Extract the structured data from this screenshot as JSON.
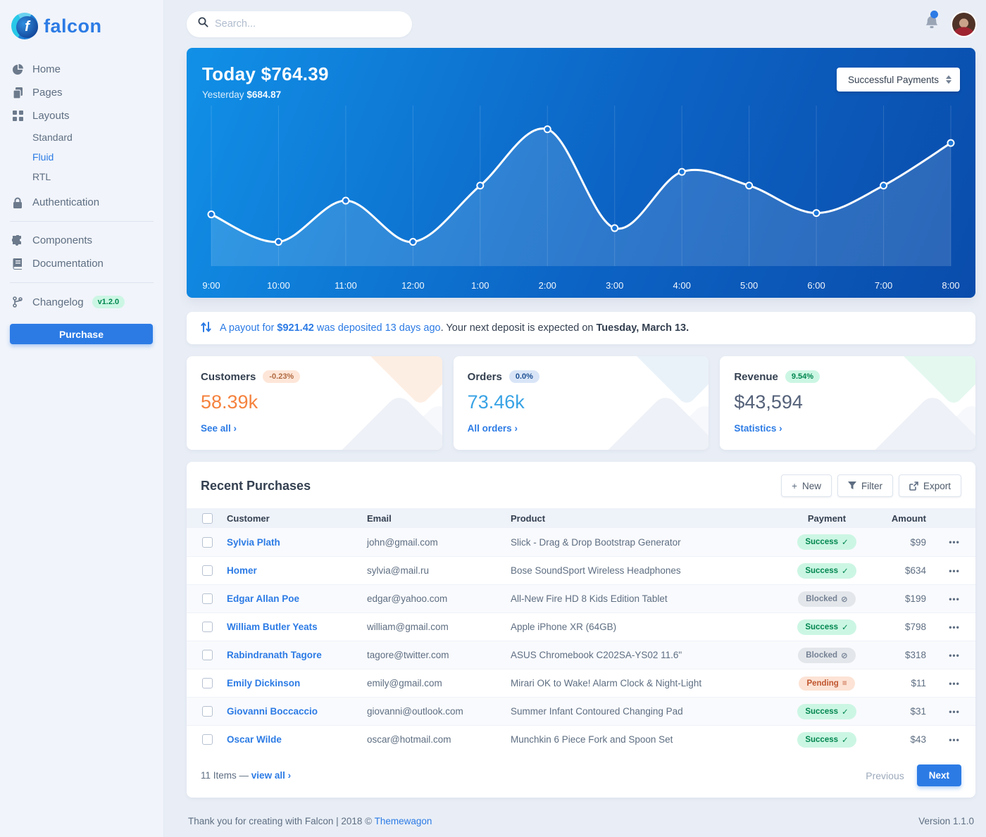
{
  "brand": {
    "name": "falcon"
  },
  "topbar": {
    "search_placeholder": "Search..."
  },
  "sidebar": {
    "home": "Home",
    "pages": "Pages",
    "layouts": "Layouts",
    "standard": "Standard",
    "fluid": "Fluid",
    "rtl": "RTL",
    "authentication": "Authentication",
    "components": "Components",
    "documentation": "Documentation",
    "changelog": "Changelog",
    "version_badge": "v1.2.0",
    "purchase": "Purchase"
  },
  "chart": {
    "title": "Today $764.39",
    "subtitle_label": "Yesterday",
    "subtitle_value": "$684.87",
    "select_value": "Successful Payments"
  },
  "chart_data": {
    "type": "line",
    "title": "Today $764.39",
    "series_name": "Successful Payments",
    "x": [
      "9:00",
      "10:00",
      "11:00",
      "12:00",
      "1:00",
      "2:00",
      "3:00",
      "4:00",
      "5:00",
      "6:00",
      "7:00",
      "8:00"
    ],
    "values": [
      31,
      11,
      41,
      11,
      52,
      93,
      21,
      62,
      52,
      32,
      52,
      83
    ],
    "ylim": [
      0,
      100
    ],
    "grid": "vertical-only",
    "legend": "none",
    "line_color": "#ffffff",
    "area_fill": "rgba(255,255,255,0.14)"
  },
  "payout": {
    "link_before_amount": "A payout for",
    "amount": "$921.42",
    "link_after_amount": "was deposited 13 days ago",
    "rest_text": ". Your next deposit is expected on",
    "rest_bold": "Tuesday, March 13."
  },
  "stats": [
    {
      "title": "Customers",
      "badge": "-0.23%",
      "value": "58.39k",
      "link": "See all",
      "accent": "warning"
    },
    {
      "title": "Orders",
      "badge": "0.0%",
      "value": "73.46k",
      "link": "All orders",
      "accent": "info"
    },
    {
      "title": "Revenue",
      "badge": "9.54%",
      "value": "$43,594",
      "link": "Statistics",
      "accent": "success"
    }
  ],
  "purchases": {
    "title": "Recent Purchases",
    "buttons": {
      "new": "New",
      "filter": "Filter",
      "export": "Export"
    },
    "columns": [
      "Customer",
      "Email",
      "Product",
      "Payment",
      "Amount"
    ],
    "status_icons": {
      "Success": "✓",
      "Blocked": "⊘",
      "Pending": "≡"
    },
    "rows": [
      {
        "customer": "Sylvia Plath",
        "email": "john@gmail.com",
        "product": "Slick - Drag & Drop Bootstrap Generator",
        "payment": "Success",
        "amount": "$99"
      },
      {
        "customer": "Homer",
        "email": "sylvia@mail.ru",
        "product": "Bose SoundSport Wireless Headphones",
        "payment": "Success",
        "amount": "$634"
      },
      {
        "customer": "Edgar Allan Poe",
        "email": "edgar@yahoo.com",
        "product": "All-New Fire HD 8 Kids Edition Tablet",
        "payment": "Blocked",
        "amount": "$199"
      },
      {
        "customer": "William Butler Yeats",
        "email": "william@gmail.com",
        "product": "Apple iPhone XR (64GB)",
        "payment": "Success",
        "amount": "$798"
      },
      {
        "customer": "Rabindranath Tagore",
        "email": "tagore@twitter.com",
        "product": "ASUS Chromebook C202SA-YS02 11.6\"",
        "payment": "Blocked",
        "amount": "$318"
      },
      {
        "customer": "Emily Dickinson",
        "email": "emily@gmail.com",
        "product": "Mirari OK to Wake! Alarm Clock & Night-Light",
        "payment": "Pending",
        "amount": "$11"
      },
      {
        "customer": "Giovanni Boccaccio",
        "email": "giovanni@outlook.com",
        "product": "Summer Infant Contoured Changing Pad",
        "payment": "Success",
        "amount": "$31"
      },
      {
        "customer": "Oscar Wilde",
        "email": "oscar@hotmail.com",
        "product": "Munchkin 6 Piece Fork and Spoon Set",
        "payment": "Success",
        "amount": "$43"
      }
    ],
    "footer": {
      "items_text": "11 Items —",
      "view_all": "view all",
      "previous": "Previous",
      "next": "Next"
    }
  },
  "page_footer": {
    "left_text": "Thank you for creating with Falcon | 2018 ©",
    "left_link": "Themewagon",
    "right_text": "Version 1.1.0"
  },
  "colors": {
    "primary": "#2c7be5",
    "success_text": "#00864e",
    "success_bg": "#ccf6e4",
    "warning_text": "#c0552e",
    "warning_bg": "#fce3d5",
    "secondary_text": "#748194",
    "secondary_bg": "#e3e6ea",
    "chart_gradient": [
      "#1190e7",
      "#0a4cab"
    ]
  }
}
